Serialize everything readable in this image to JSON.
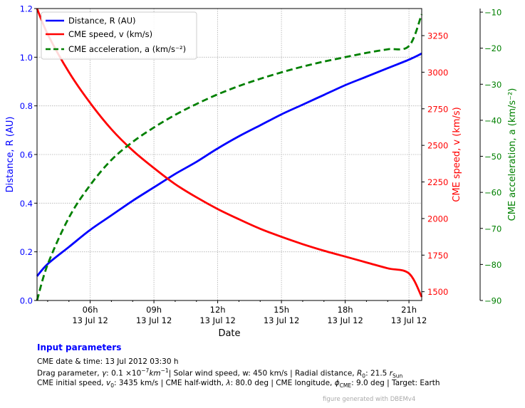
{
  "chart_data": {
    "type": "line",
    "xlabel": "Date",
    "x_ticks": [
      {
        "time": "06h",
        "date": "13 Jul 12",
        "hours": 6
      },
      {
        "time": "09h",
        "date": "13 Jul 12",
        "hours": 9
      },
      {
        "time": "12h",
        "date": "13 Jul 12",
        "hours": 12
      },
      {
        "time": "15h",
        "date": "13 Jul 12",
        "hours": 15
      },
      {
        "time": "18h",
        "date": "13 Jul 12",
        "hours": 18
      },
      {
        "time": "21h",
        "date": "13 Jul 12",
        "hours": 21
      }
    ],
    "x_range_hours": [
      3.5,
      21.6
    ],
    "grid": true,
    "legend_position": "top-left",
    "axes": {
      "left": {
        "label": "Distance, R (AU)",
        "color": "#0000ff",
        "range": [
          0,
          1.2
        ],
        "ticks": [
          "0.0",
          "0.2",
          "0.4",
          "0.6",
          "0.8",
          "1.0",
          "1.2"
        ]
      },
      "right": {
        "label": "CME speed, v (km/s)",
        "color": "#ff0000",
        "range": [
          1440,
          3435
        ],
        "ticks": [
          "1500",
          "1750",
          "2000",
          "2250",
          "2500",
          "2750",
          "3000",
          "3250"
        ]
      },
      "far_right": {
        "label": "CME acceleration, a (km/s⁻²)",
        "color": "#008000",
        "range": [
          -90,
          -9
        ],
        "ticks": [
          "−90",
          "−80",
          "−70",
          "−60",
          "−50",
          "−40",
          "−30",
          "−20",
          "−10"
        ]
      }
    },
    "series": [
      {
        "name": "Distance, R (AU)",
        "axis": "left",
        "color": "#0000ff",
        "dash": "solid",
        "x": [
          3.5,
          4,
          5,
          6,
          7,
          8,
          9,
          10,
          11,
          12,
          13,
          14,
          15,
          16,
          17,
          18,
          19,
          20,
          21,
          21.6
        ],
        "y": [
          0.1,
          0.15,
          0.22,
          0.29,
          0.35,
          0.41,
          0.465,
          0.52,
          0.57,
          0.625,
          0.675,
          0.72,
          0.765,
          0.805,
          0.845,
          0.885,
          0.92,
          0.955,
          0.99,
          1.015
        ]
      },
      {
        "name": "CME speed, v (km/s)",
        "axis": "right",
        "color": "#ff0000",
        "dash": "solid",
        "x": [
          3.5,
          4,
          5,
          6,
          7,
          8,
          9,
          10,
          11,
          12,
          13,
          14,
          15,
          16,
          17,
          18,
          19,
          20,
          21,
          21.6
        ],
        "y": [
          3435,
          3260,
          3000,
          2790,
          2610,
          2465,
          2345,
          2235,
          2145,
          2065,
          1995,
          1930,
          1875,
          1825,
          1780,
          1740,
          1700,
          1660,
          1625,
          1465
        ]
      },
      {
        "name": "CME acceleration, a (km/s⁻²)",
        "axis": "far_right",
        "color": "#008000",
        "dash": "dashed",
        "x": [
          3.5,
          4,
          5,
          6,
          7,
          8,
          9,
          10,
          11,
          12,
          13,
          14,
          15,
          16,
          17,
          18,
          19,
          20,
          21,
          21.6
        ],
        "y": [
          -90,
          -80,
          -67,
          -58,
          -51,
          -46,
          -42,
          -38.5,
          -35.5,
          -32.8,
          -30.5,
          -28.5,
          -26.7,
          -25.1,
          -23.7,
          -22.5,
          -21.3,
          -20.3,
          -19.4,
          -10.6
        ]
      }
    ]
  },
  "input_parameters": {
    "heading": "Input parameters",
    "datetime_label": "CME date & time:",
    "datetime_value": "13 Jul 2012 03:30 h",
    "drag_label": "Drag parameter,",
    "drag_symbol": "γ",
    "drag_value": "0.1 ×10",
    "drag_exp": "−7",
    "drag_unit": "km",
    "drag_unit_exp": "−1",
    "wind_text": "| Solar wind speed, w: 450 km/s | Radial distance,",
    "r0_symbol": "R",
    "r0_sub": "0",
    "r0_value": "21.5",
    "r0_unit": "r",
    "r0_unit_sub": "Sun",
    "speed_label": "CME initial speed,",
    "v0_symbol": "v",
    "v0_sub": "0",
    "v0_value": "3435 km/s | CME half-width,",
    "halfwidth_symbol": "λ",
    "halfwidth_value": "80.0 deg | CME longitude,",
    "lon_symbol": "ϕ",
    "lon_sub": "CME",
    "lon_value": "9.0 deg | Target: Earth"
  },
  "footer": {
    "credit": "figure generated with DBEMv4"
  }
}
